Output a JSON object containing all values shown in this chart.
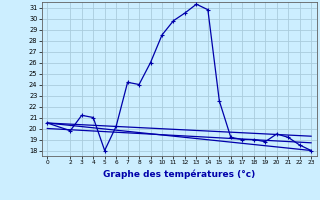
{
  "title": "Graphe des températures (°c)",
  "bg_color": "#cceeff",
  "grid_color": "#aaccdd",
  "line_color": "#0000aa",
  "ylim": [
    17.5,
    31.5
  ],
  "xlim": [
    -0.5,
    23.5
  ],
  "yticks": [
    18,
    19,
    20,
    21,
    22,
    23,
    24,
    25,
    26,
    27,
    28,
    29,
    30,
    31
  ],
  "xticks": [
    0,
    2,
    3,
    4,
    5,
    6,
    7,
    8,
    9,
    10,
    11,
    12,
    13,
    14,
    15,
    16,
    17,
    18,
    19,
    20,
    21,
    22,
    23
  ],
  "xtick_labels": [
    "0",
    "2",
    "3",
    "4",
    "5",
    "6",
    "7",
    "8",
    "9",
    "10",
    "11",
    "12",
    "13",
    "14",
    "15",
    "16",
    "17",
    "18",
    "19",
    "20",
    "21",
    "22",
    "23"
  ],
  "main_series": {
    "x": [
      0,
      2,
      3,
      4,
      5,
      6,
      7,
      8,
      9,
      10,
      11,
      12,
      13,
      14,
      15,
      16,
      17,
      18,
      19,
      20,
      21,
      22,
      23
    ],
    "y": [
      20.5,
      19.8,
      21.2,
      21.0,
      18.0,
      20.2,
      24.2,
      24.0,
      26.0,
      28.5,
      29.8,
      30.5,
      31.3,
      30.8,
      22.5,
      19.2,
      19.0,
      19.0,
      18.8,
      19.5,
      19.2,
      18.5,
      18.0
    ]
  },
  "line1": {
    "x": [
      0,
      23
    ],
    "y": [
      20.5,
      18.0
    ]
  },
  "line2": {
    "x": [
      0,
      23
    ],
    "y": [
      20.5,
      19.3
    ]
  },
  "line3": {
    "x": [
      0,
      23
    ],
    "y": [
      20.0,
      18.7
    ]
  }
}
